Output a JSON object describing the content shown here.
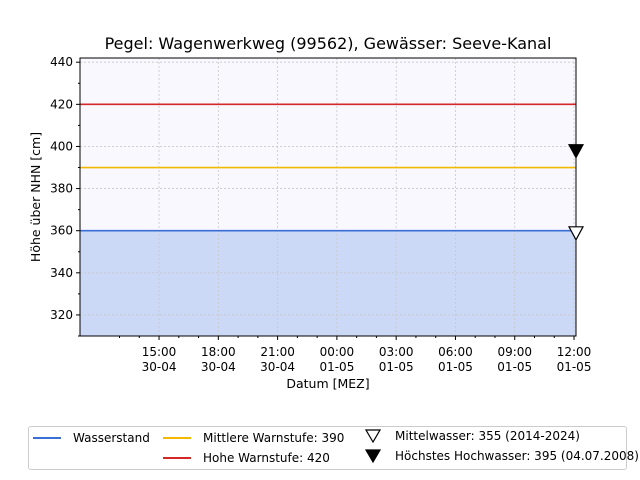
{
  "chart_data": {
    "type": "line",
    "title": "Pegel:  Wagenwerkweg (99562), Gewässer:  Seeve-Kanal",
    "xlabel": "Datum [MEZ]",
    "ylabel": "Höhe über NHN [cm]",
    "ylim": [
      310,
      442
    ],
    "yticks": [
      320,
      340,
      360,
      380,
      400,
      420,
      440
    ],
    "x_range_hours": [
      11,
      36.1
    ],
    "xticks": [
      {
        "h": 15,
        "time": "15:00",
        "date": "30-04"
      },
      {
        "h": 18,
        "time": "18:00",
        "date": "30-04"
      },
      {
        "h": 21,
        "time": "21:00",
        "date": "30-04"
      },
      {
        "h": 24,
        "time": "00:00",
        "date": "01-05"
      },
      {
        "h": 27,
        "time": "03:00",
        "date": "01-05"
      },
      {
        "h": 30,
        "time": "06:00",
        "date": "01-05"
      },
      {
        "h": 33,
        "time": "09:00",
        "date": "01-05"
      },
      {
        "h": 36,
        "time": "12:00",
        "date": "01-05"
      }
    ],
    "grid": true,
    "legend_position": "bottom",
    "series": [
      {
        "name": "Wasserstand",
        "color": "#3a6fd6",
        "fill": "#cbd9f7",
        "value": 360
      },
      {
        "name": "Mittlere Warnstufe: 390",
        "color": "#f5b800",
        "value": 390
      },
      {
        "name": "Hohe Warnstufe: 420",
        "color": "#d62728",
        "value": 420
      }
    ],
    "markers": [
      {
        "name": "Mittelwasser: 355 (2014-2024)",
        "symbol": "triangle-down-open",
        "value": 359
      },
      {
        "name": "Höchstes Hochwasser: 395 (04.07.2008)",
        "symbol": "triangle-down-filled",
        "value": 398
      }
    ],
    "background": "#f8f8fe"
  }
}
